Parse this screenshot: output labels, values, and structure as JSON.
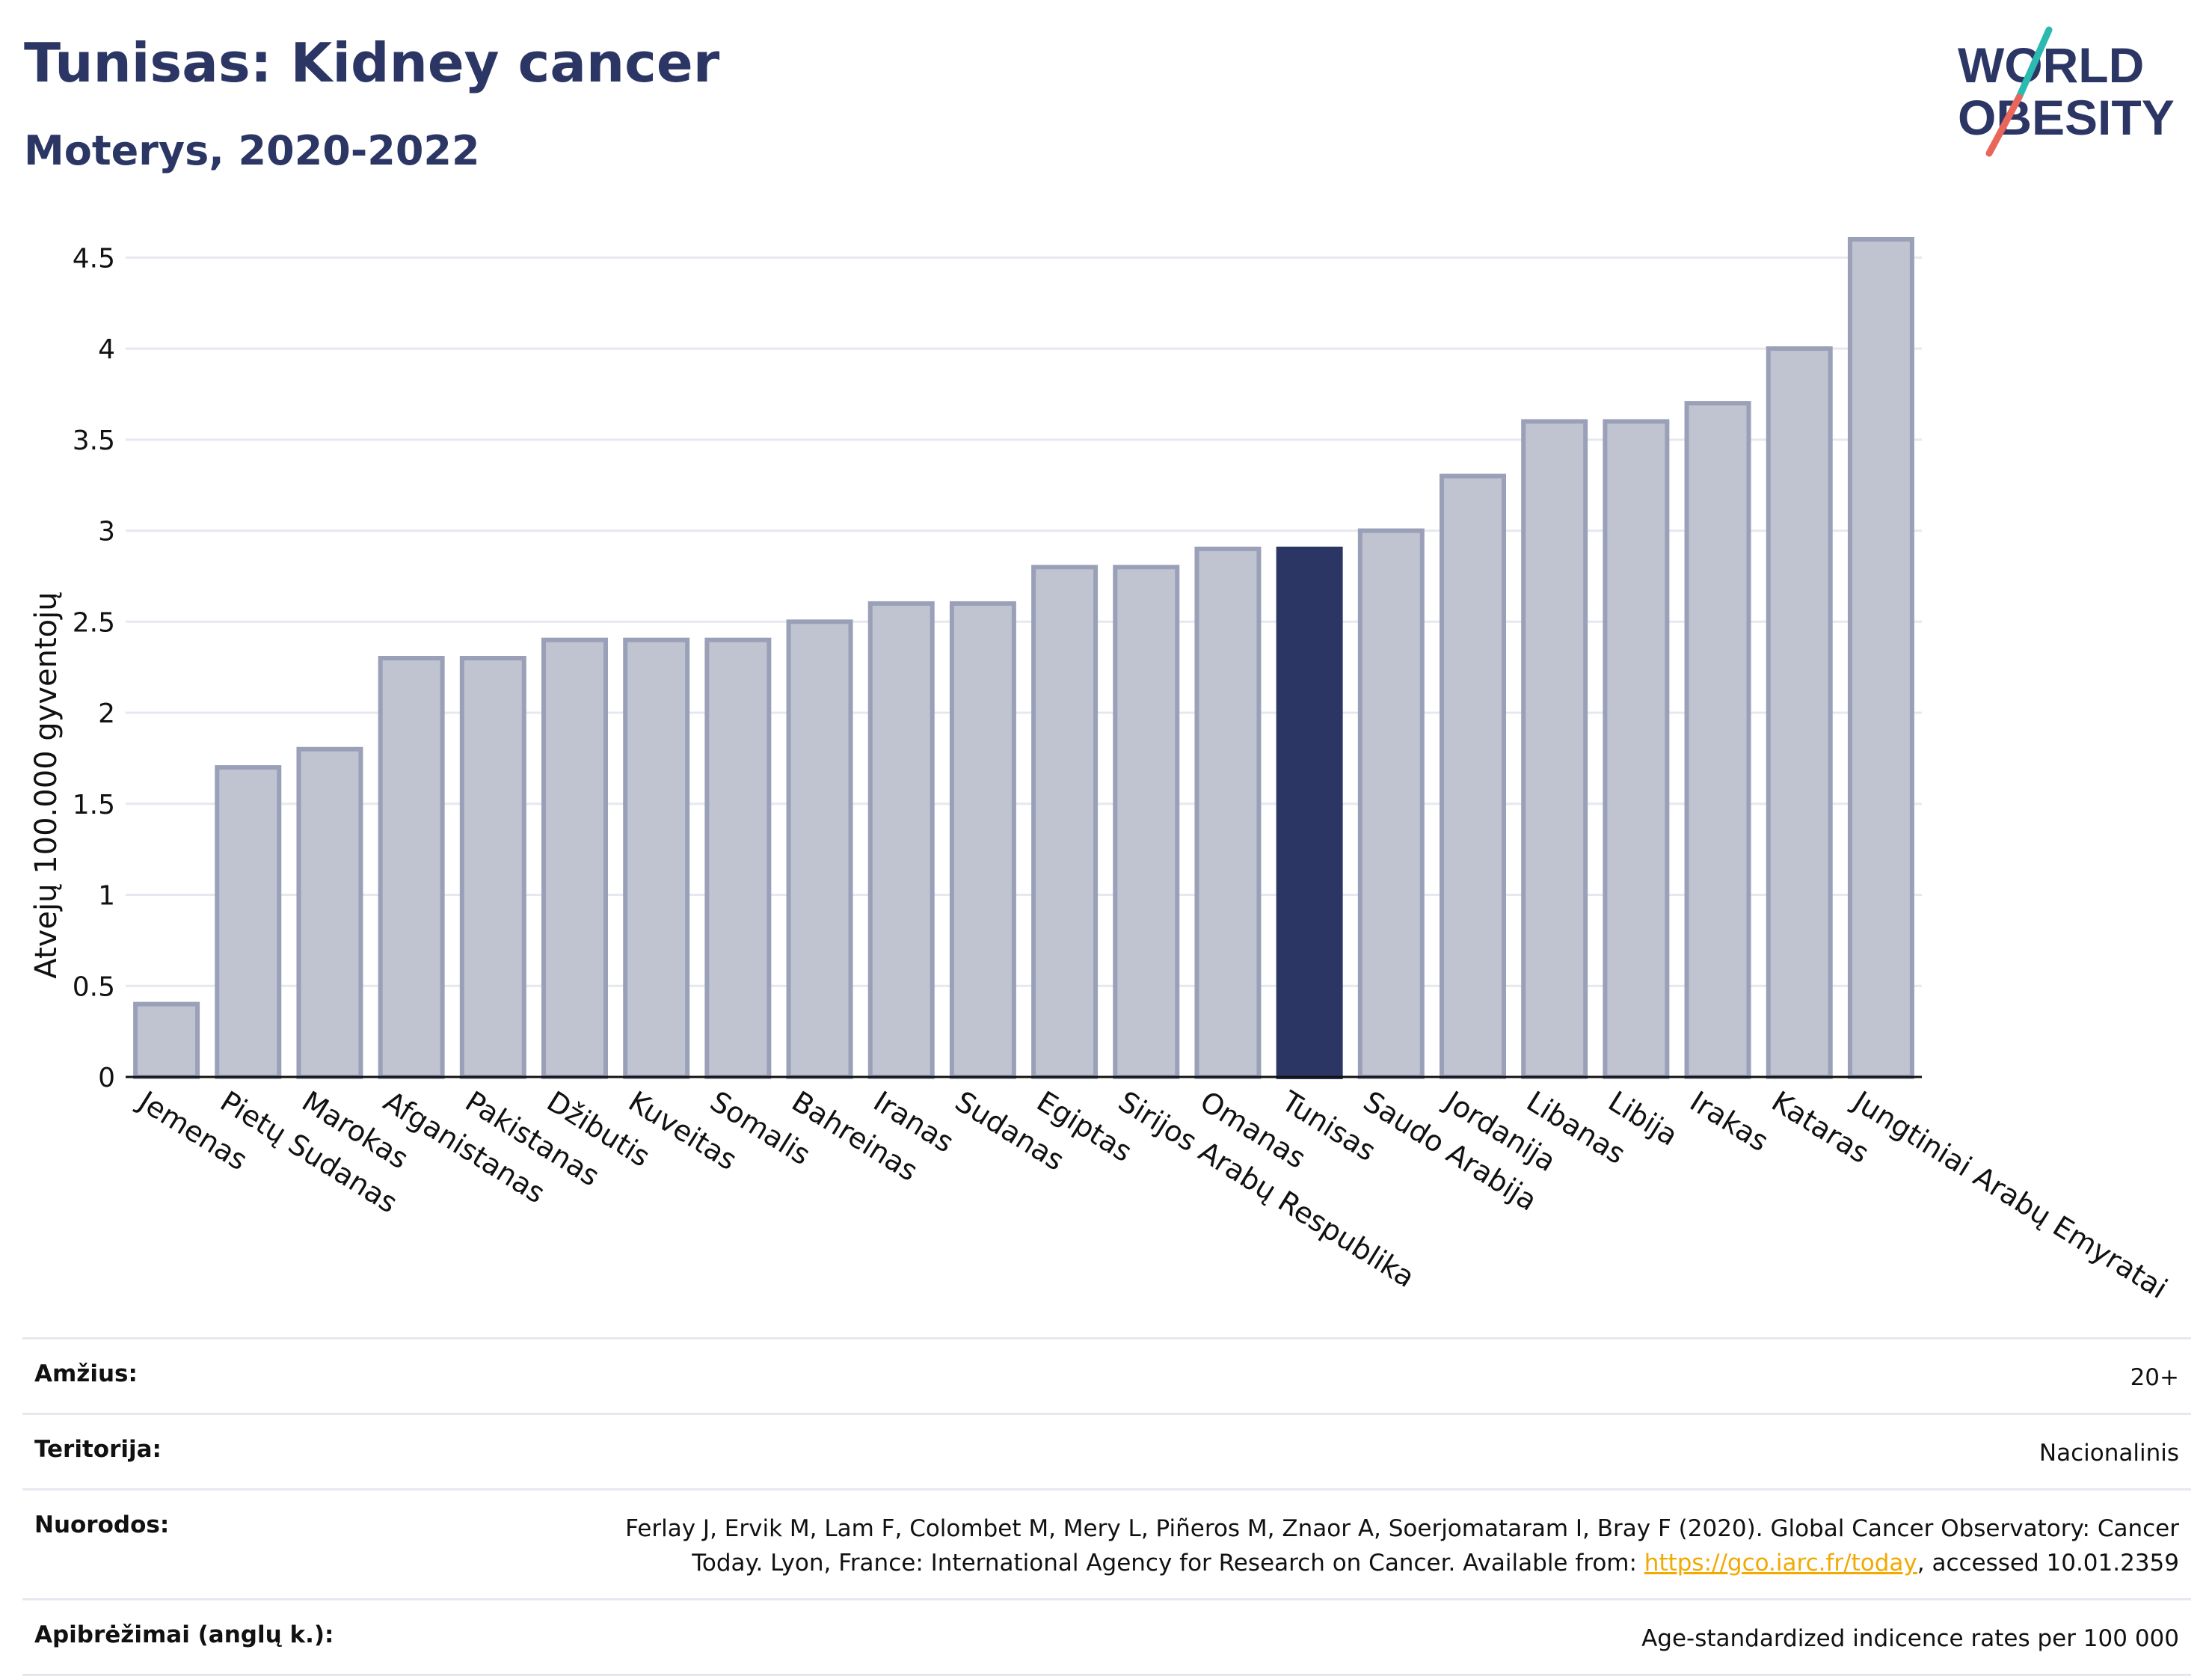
{
  "header": {
    "title": "Tunisas: Kidney cancer",
    "subtitle": "Moterys, 2020-2022"
  },
  "logo": {
    "line1": "WORLD",
    "line2": "OBESITY"
  },
  "colors": {
    "brand_navy": "#2b3664",
    "bar_default": "#c0c3d0",
    "bar_border": "#9aa0b8",
    "bar_highlight": "#2b3664",
    "grid": "#e6e8f0",
    "link": "#f2a900",
    "logo_accent_teal": "#2bb9b0",
    "logo_accent_red": "#e8675a"
  },
  "chart_data": {
    "type": "bar",
    "title": "Tunisas: Kidney cancer",
    "subtitle": "Moterys, 2020-2022",
    "xlabel": "",
    "ylabel": "Atvejų 100.000 gyventojų",
    "ylim": [
      0,
      4.6
    ],
    "yticks": [
      0,
      0.5,
      1,
      1.5,
      2,
      2.5,
      3,
      3.5,
      4,
      4.5
    ],
    "ytick_labels": [
      "0",
      "0.5",
      "1",
      "1.5",
      "2",
      "2.5",
      "3",
      "3.5",
      "4",
      "4.5"
    ],
    "grid": true,
    "categories": [
      "Jemenas",
      "Pietų Sudanas",
      "Marokas",
      "Afganistanas",
      "Pakistanas",
      "Džibutis",
      "Kuveitas",
      "Somalis",
      "Bahreinas",
      "Iranas",
      "Sudanas",
      "Egiptas",
      "Sirijos Arabų Respublika",
      "Omanas",
      "Tunisas",
      "Saudo Arabija",
      "Jordanija",
      "Libanas",
      "Libija",
      "Irakas",
      "Kataras",
      "Jungtiniai Arabų Emyratai"
    ],
    "values": [
      0.4,
      1.7,
      1.8,
      2.3,
      2.3,
      2.4,
      2.4,
      2.4,
      2.5,
      2.6,
      2.6,
      2.8,
      2.8,
      2.9,
      2.9,
      3.0,
      3.3,
      3.6,
      3.6,
      3.7,
      4.0,
      4.6
    ],
    "highlight": "Tunisas"
  },
  "info": [
    {
      "key": "Amžius:",
      "value": "20+"
    },
    {
      "key": "Teritorija:",
      "value": "Nacionalinis"
    },
    {
      "key": "Nuorodos:",
      "value_pre": "Ferlay J, Ervik M, Lam F, Colombet M, Mery L, Piñeros M, Znaor A, Soerjomataram I, Bray F (2020). Global Cancer Observatory: Cancer Today. Lyon, France: International Agency for Research on Cancer. Available from: ",
      "link": "https://gco.iarc.fr/today",
      "value_post": ", accessed 10.01.2359"
    },
    {
      "key": "Apibrėžimai (anglų k.):",
      "value": "Age-standardized indicence rates per 100 000"
    }
  ]
}
